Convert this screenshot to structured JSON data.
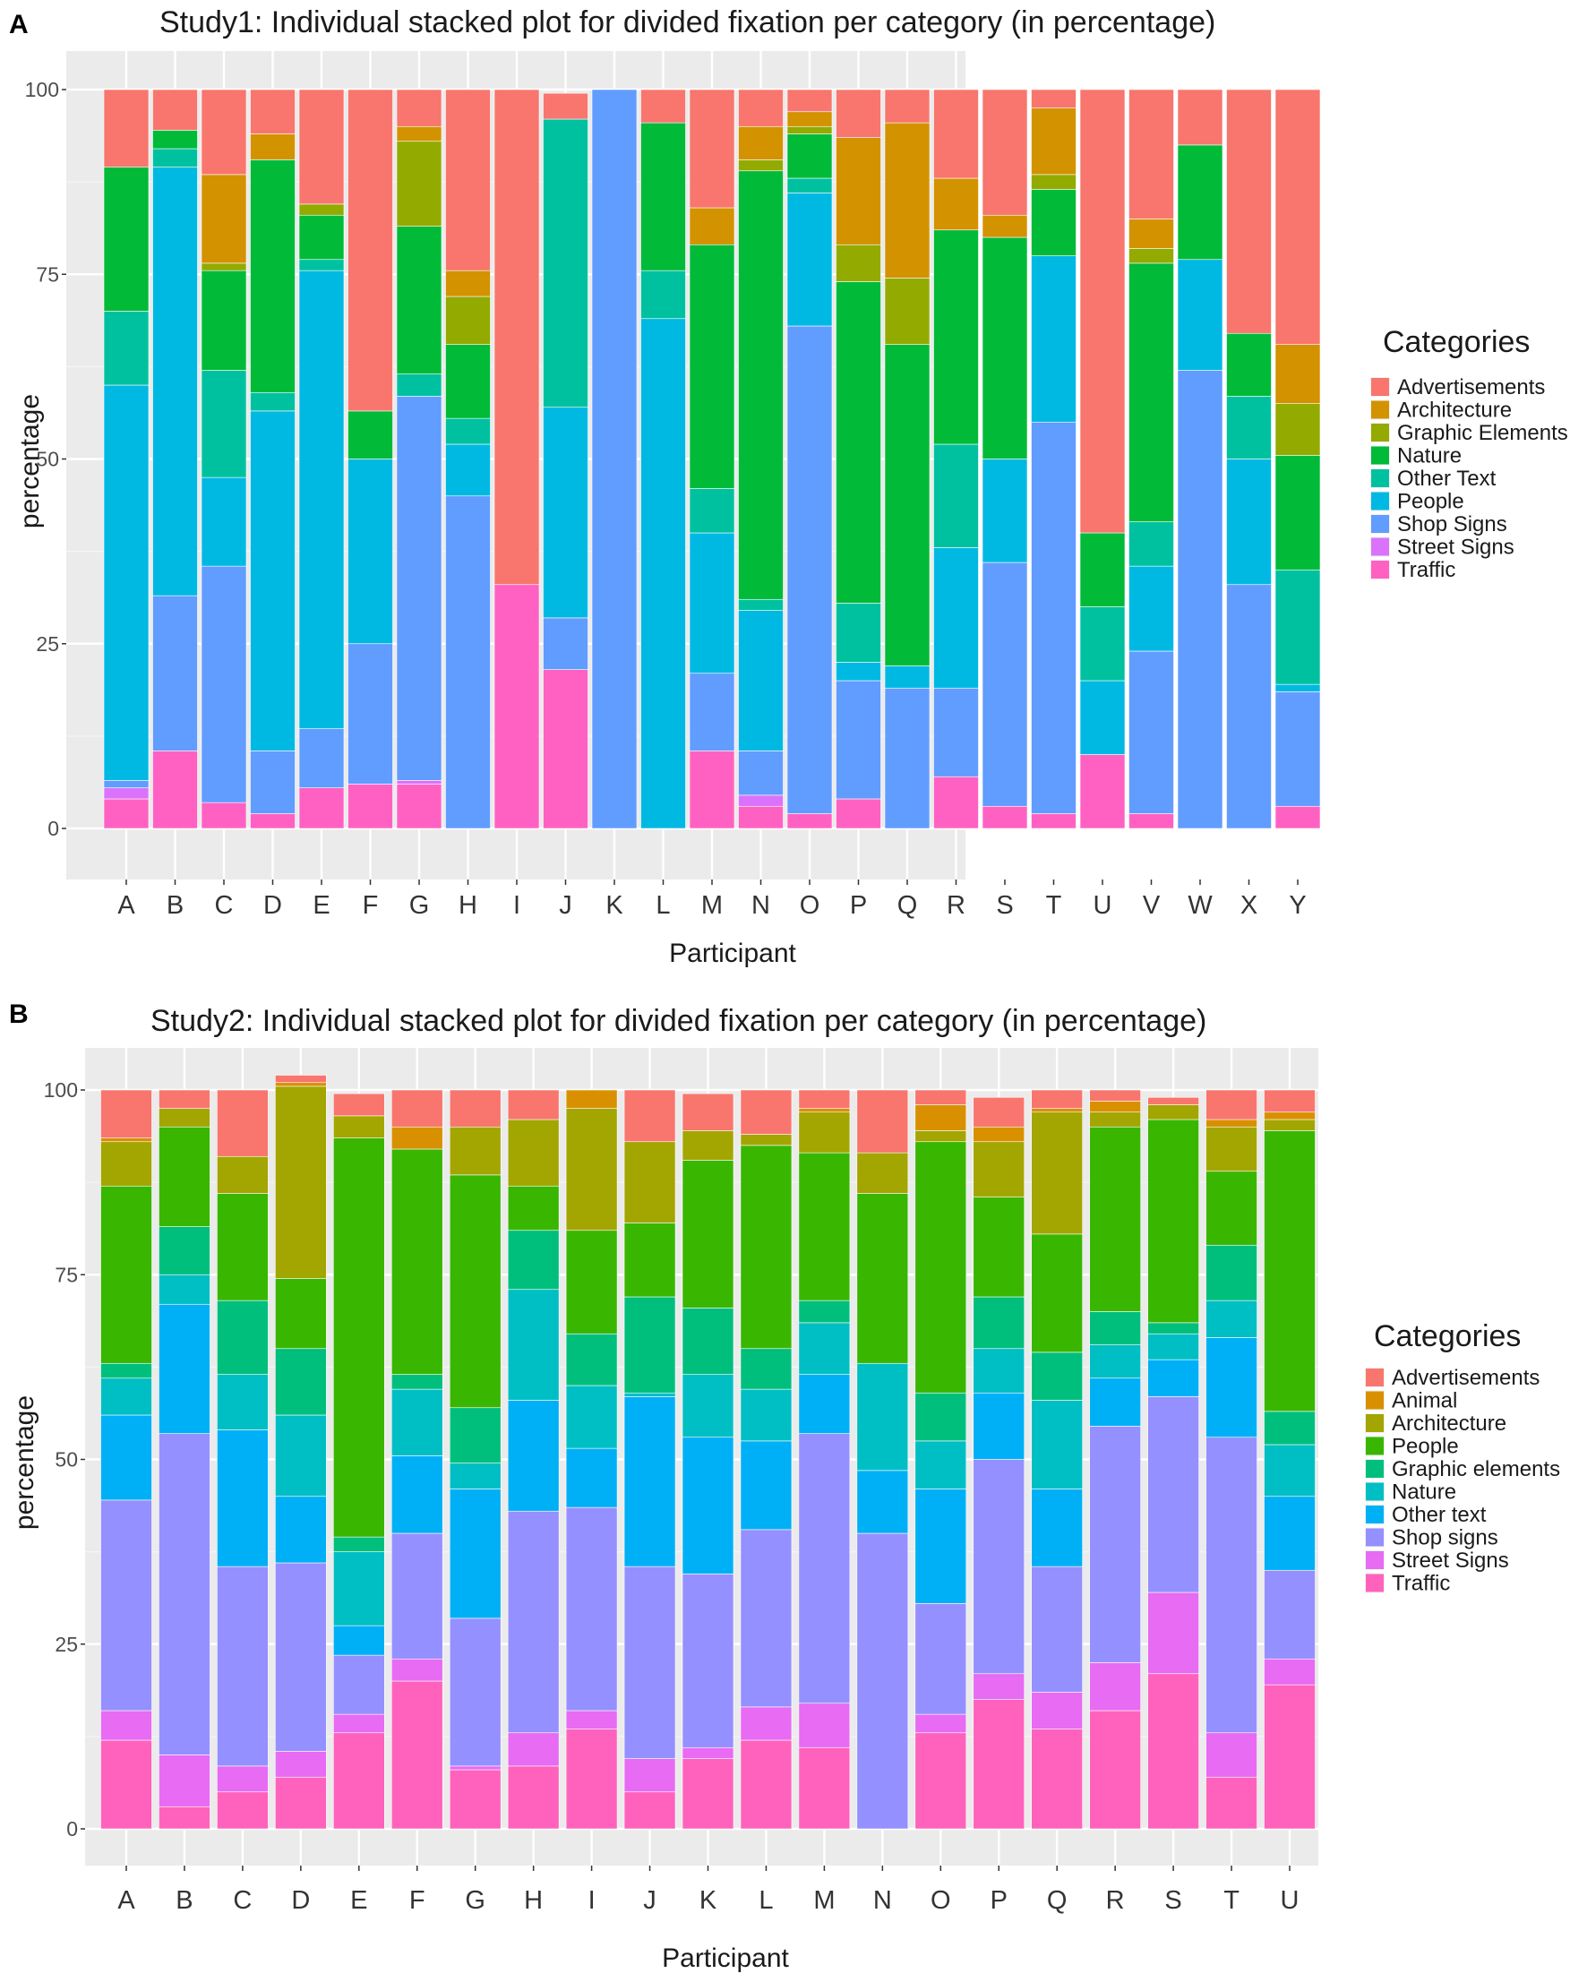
{
  "figure": {
    "panel_a_label": "A",
    "panel_b_label": "B"
  },
  "colors": {
    "Advertisements": "#F8766D",
    "Architecture": "#D39200",
    "Graphic Elements": "#93AA00",
    "Nature": "#00BA38",
    "Other Text": "#00C19F",
    "People": "#00B9E3",
    "Shop Signs": "#619CFF",
    "Street Signs": "#DB72FB",
    "Traffic": "#FF61C3",
    "s2_Advertisements": "#F8766D",
    "s2_Animal": "#D89000",
    "s2_Architecture": "#A3A500",
    "s2_People": "#39B600",
    "s2_Graphic elements": "#00BF7D",
    "s2_Nature": "#00BFC4",
    "s2_Other text": "#00B0F6",
    "s2_Shop signs": "#9590FF",
    "s2_Street Signs": "#E76BF3",
    "s2_Traffic": "#FF62BC",
    "panel_bg": "#EBEBEB",
    "grid": "#FFFFFF"
  },
  "chart_data": [
    {
      "type": "bar",
      "stacked": true,
      "title": "Study1: Individual stacked plot for divided fixation per category (in percentage)",
      "xlabel": "Participant",
      "ylabel": "percentage",
      "ylim": [
        0,
        100
      ],
      "yticks": [
        0,
        25,
        50,
        75,
        100
      ],
      "legend_title": "Categories",
      "legend_position": "right",
      "categories": [
        "A",
        "B",
        "C",
        "D",
        "E",
        "F",
        "G",
        "H",
        "I",
        "J",
        "K",
        "L",
        "M",
        "N",
        "O",
        "P",
        "Q",
        "R",
        "S",
        "T",
        "U",
        "V",
        "W",
        "X",
        "Y"
      ],
      "series": [
        {
          "name": "Traffic",
          "values": [
            4,
            10.5,
            3.5,
            2,
            5.5,
            6,
            6,
            0,
            33,
            21.5,
            0,
            0,
            10.5,
            3,
            2,
            4,
            0,
            7,
            3,
            2,
            10,
            2,
            0,
            0,
            3
          ]
        },
        {
          "name": "Street Signs",
          "values": [
            1.5,
            0,
            0,
            0,
            0,
            0,
            0.5,
            0,
            0,
            0,
            0,
            0,
            0,
            1.5,
            0,
            0,
            0,
            0,
            0,
            0,
            0,
            0,
            0,
            0,
            0
          ]
        },
        {
          "name": "Shop Signs",
          "values": [
            1,
            21,
            32,
            8.5,
            8,
            19,
            52,
            45,
            0,
            7,
            100,
            0,
            10.5,
            6,
            66,
            16,
            19,
            12,
            33,
            53,
            0,
            22,
            62,
            33,
            15.5
          ]
        },
        {
          "name": "People",
          "values": [
            53.5,
            58,
            12,
            46,
            62,
            25,
            0,
            7,
            0,
            28.5,
            0,
            69,
            19,
            19,
            18,
            2.5,
            3,
            19,
            14,
            22.5,
            10,
            11.5,
            15,
            17,
            1
          ]
        },
        {
          "name": "Other Text",
          "values": [
            10,
            2.5,
            14.5,
            2.5,
            1.5,
            0,
            3,
            3.5,
            0,
            39,
            0,
            6.5,
            6,
            1.5,
            2,
            8,
            0,
            14,
            0,
            0,
            10,
            6,
            0,
            8.5,
            15.5
          ]
        },
        {
          "name": "Nature",
          "values": [
            19.5,
            2.5,
            13.5,
            31.5,
            6,
            6.5,
            20,
            10,
            0,
            0,
            0,
            20,
            33,
            58,
            6,
            43.5,
            43.5,
            29,
            30,
            9,
            10,
            35,
            15.5,
            8.5,
            15.5
          ]
        },
        {
          "name": "Graphic Elements",
          "values": [
            0,
            0,
            1,
            0,
            1.5,
            0,
            11.5,
            6.5,
            0,
            0,
            0,
            0,
            0,
            1.5,
            1,
            5,
            9,
            0,
            0,
            2,
            0,
            2,
            0,
            0,
            7
          ]
        },
        {
          "name": "Architecture",
          "values": [
            0,
            0,
            12,
            3.5,
            0,
            0,
            2,
            3.5,
            0,
            0,
            0,
            0,
            5,
            4.5,
            2,
            14.5,
            21,
            7,
            3,
            9,
            0,
            4,
            0,
            0,
            8
          ]
        },
        {
          "name": "Advertisements",
          "values": [
            10.5,
            5.5,
            11.5,
            6,
            15.5,
            43.5,
            5,
            24.5,
            67,
            3.5,
            0,
            4.5,
            16,
            5,
            3,
            6.5,
            4.5,
            12,
            17,
            2.5,
            60,
            17.5,
            7.5,
            33,
            34.5
          ]
        }
      ],
      "legend_entries": [
        "Advertisements",
        "Architecture",
        "Graphic Elements",
        "Nature",
        "Other Text",
        "People",
        "Shop Signs",
        "Street Signs",
        "Traffic"
      ]
    },
    {
      "type": "bar",
      "stacked": true,
      "title": "Study2: Individual stacked plot for divided fixation per category (in percentage)",
      "xlabel": "Participant",
      "ylabel": "percentage",
      "ylim": [
        0,
        100
      ],
      "yticks": [
        0,
        25,
        50,
        75,
        100
      ],
      "legend_title": "Categories",
      "legend_position": "right",
      "categories": [
        "A",
        "B",
        "C",
        "D",
        "E",
        "F",
        "G",
        "H",
        "I",
        "J",
        "K",
        "L",
        "M",
        "N",
        "O",
        "P",
        "Q",
        "R",
        "S",
        "T",
        "U"
      ],
      "series": [
        {
          "name": "Traffic",
          "values": [
            12,
            3,
            5,
            7,
            13,
            20,
            8,
            8.5,
            13.5,
            5,
            9.5,
            12,
            11,
            0,
            13,
            17.5,
            13.5,
            16,
            21,
            7,
            19.5
          ]
        },
        {
          "name": "Street Signs",
          "values": [
            4,
            7,
            3.5,
            3.5,
            2.5,
            3,
            0.5,
            4.5,
            2.5,
            4.5,
            1.5,
            4.5,
            6,
            0,
            2.5,
            3.5,
            5,
            6.5,
            11,
            6,
            3.5
          ]
        },
        {
          "name": "Shop signs",
          "values": [
            28.5,
            43.5,
            27,
            25.5,
            8,
            17,
            20,
            30,
            27.5,
            26,
            23.5,
            24,
            36.5,
            40,
            15,
            29,
            17,
            32,
            26.5,
            40,
            12
          ]
        },
        {
          "name": "Other text",
          "values": [
            11.5,
            17.5,
            18.5,
            9,
            4,
            10.5,
            17.5,
            15,
            8,
            23,
            18.5,
            12,
            8,
            8.5,
            15.5,
            9,
            10.5,
            6.5,
            5,
            13.5,
            10
          ]
        },
        {
          "name": "Nature",
          "values": [
            5,
            4,
            7.5,
            11,
            10,
            9,
            3.5,
            15,
            8.5,
            0.5,
            8.5,
            7,
            7,
            14.5,
            6.5,
            6,
            12,
            4.5,
            3.5,
            5,
            7
          ]
        },
        {
          "name": "Graphic elements",
          "values": [
            2,
            6.5,
            10,
            9,
            2,
            2,
            7.5,
            8,
            7,
            13,
            9,
            5.5,
            3,
            0,
            6.5,
            7,
            6.5,
            4.5,
            1.5,
            7.5,
            4.5
          ]
        },
        {
          "name": "People",
          "values": [
            24,
            13.5,
            14.5,
            9.5,
            54,
            30.5,
            31.5,
            6,
            14,
            10,
            20,
            27.5,
            20,
            23,
            34,
            13.5,
            16,
            25,
            27.5,
            10,
            38
          ]
        },
        {
          "name": "Architecture",
          "values": [
            6,
            2.5,
            5,
            26,
            3,
            0,
            6.5,
            9,
            16.5,
            11,
            4,
            1.5,
            5.5,
            5.5,
            1.5,
            7.5,
            16.5,
            2,
            2,
            6,
            1.5
          ]
        },
        {
          "name": "Animal",
          "values": [
            0.5,
            0,
            0,
            0.5,
            0,
            3,
            0,
            0,
            2.5,
            0,
            0,
            0,
            0.5,
            0,
            3.5,
            2,
            0.5,
            1.5,
            0,
            1,
            1
          ]
        },
        {
          "name": "Advertisements",
          "values": [
            6.5,
            2.5,
            9,
            1,
            3,
            5,
            5,
            4,
            0,
            7,
            5,
            6,
            2.5,
            8.5,
            2,
            4,
            2.5,
            1.5,
            1,
            4,
            3
          ]
        }
      ],
      "legend_entries": [
        "Advertisements",
        "Animal",
        "Architecture",
        "People",
        "Graphic elements",
        "Nature",
        "Other text",
        "Shop signs",
        "Street Signs",
        "Traffic"
      ]
    }
  ]
}
